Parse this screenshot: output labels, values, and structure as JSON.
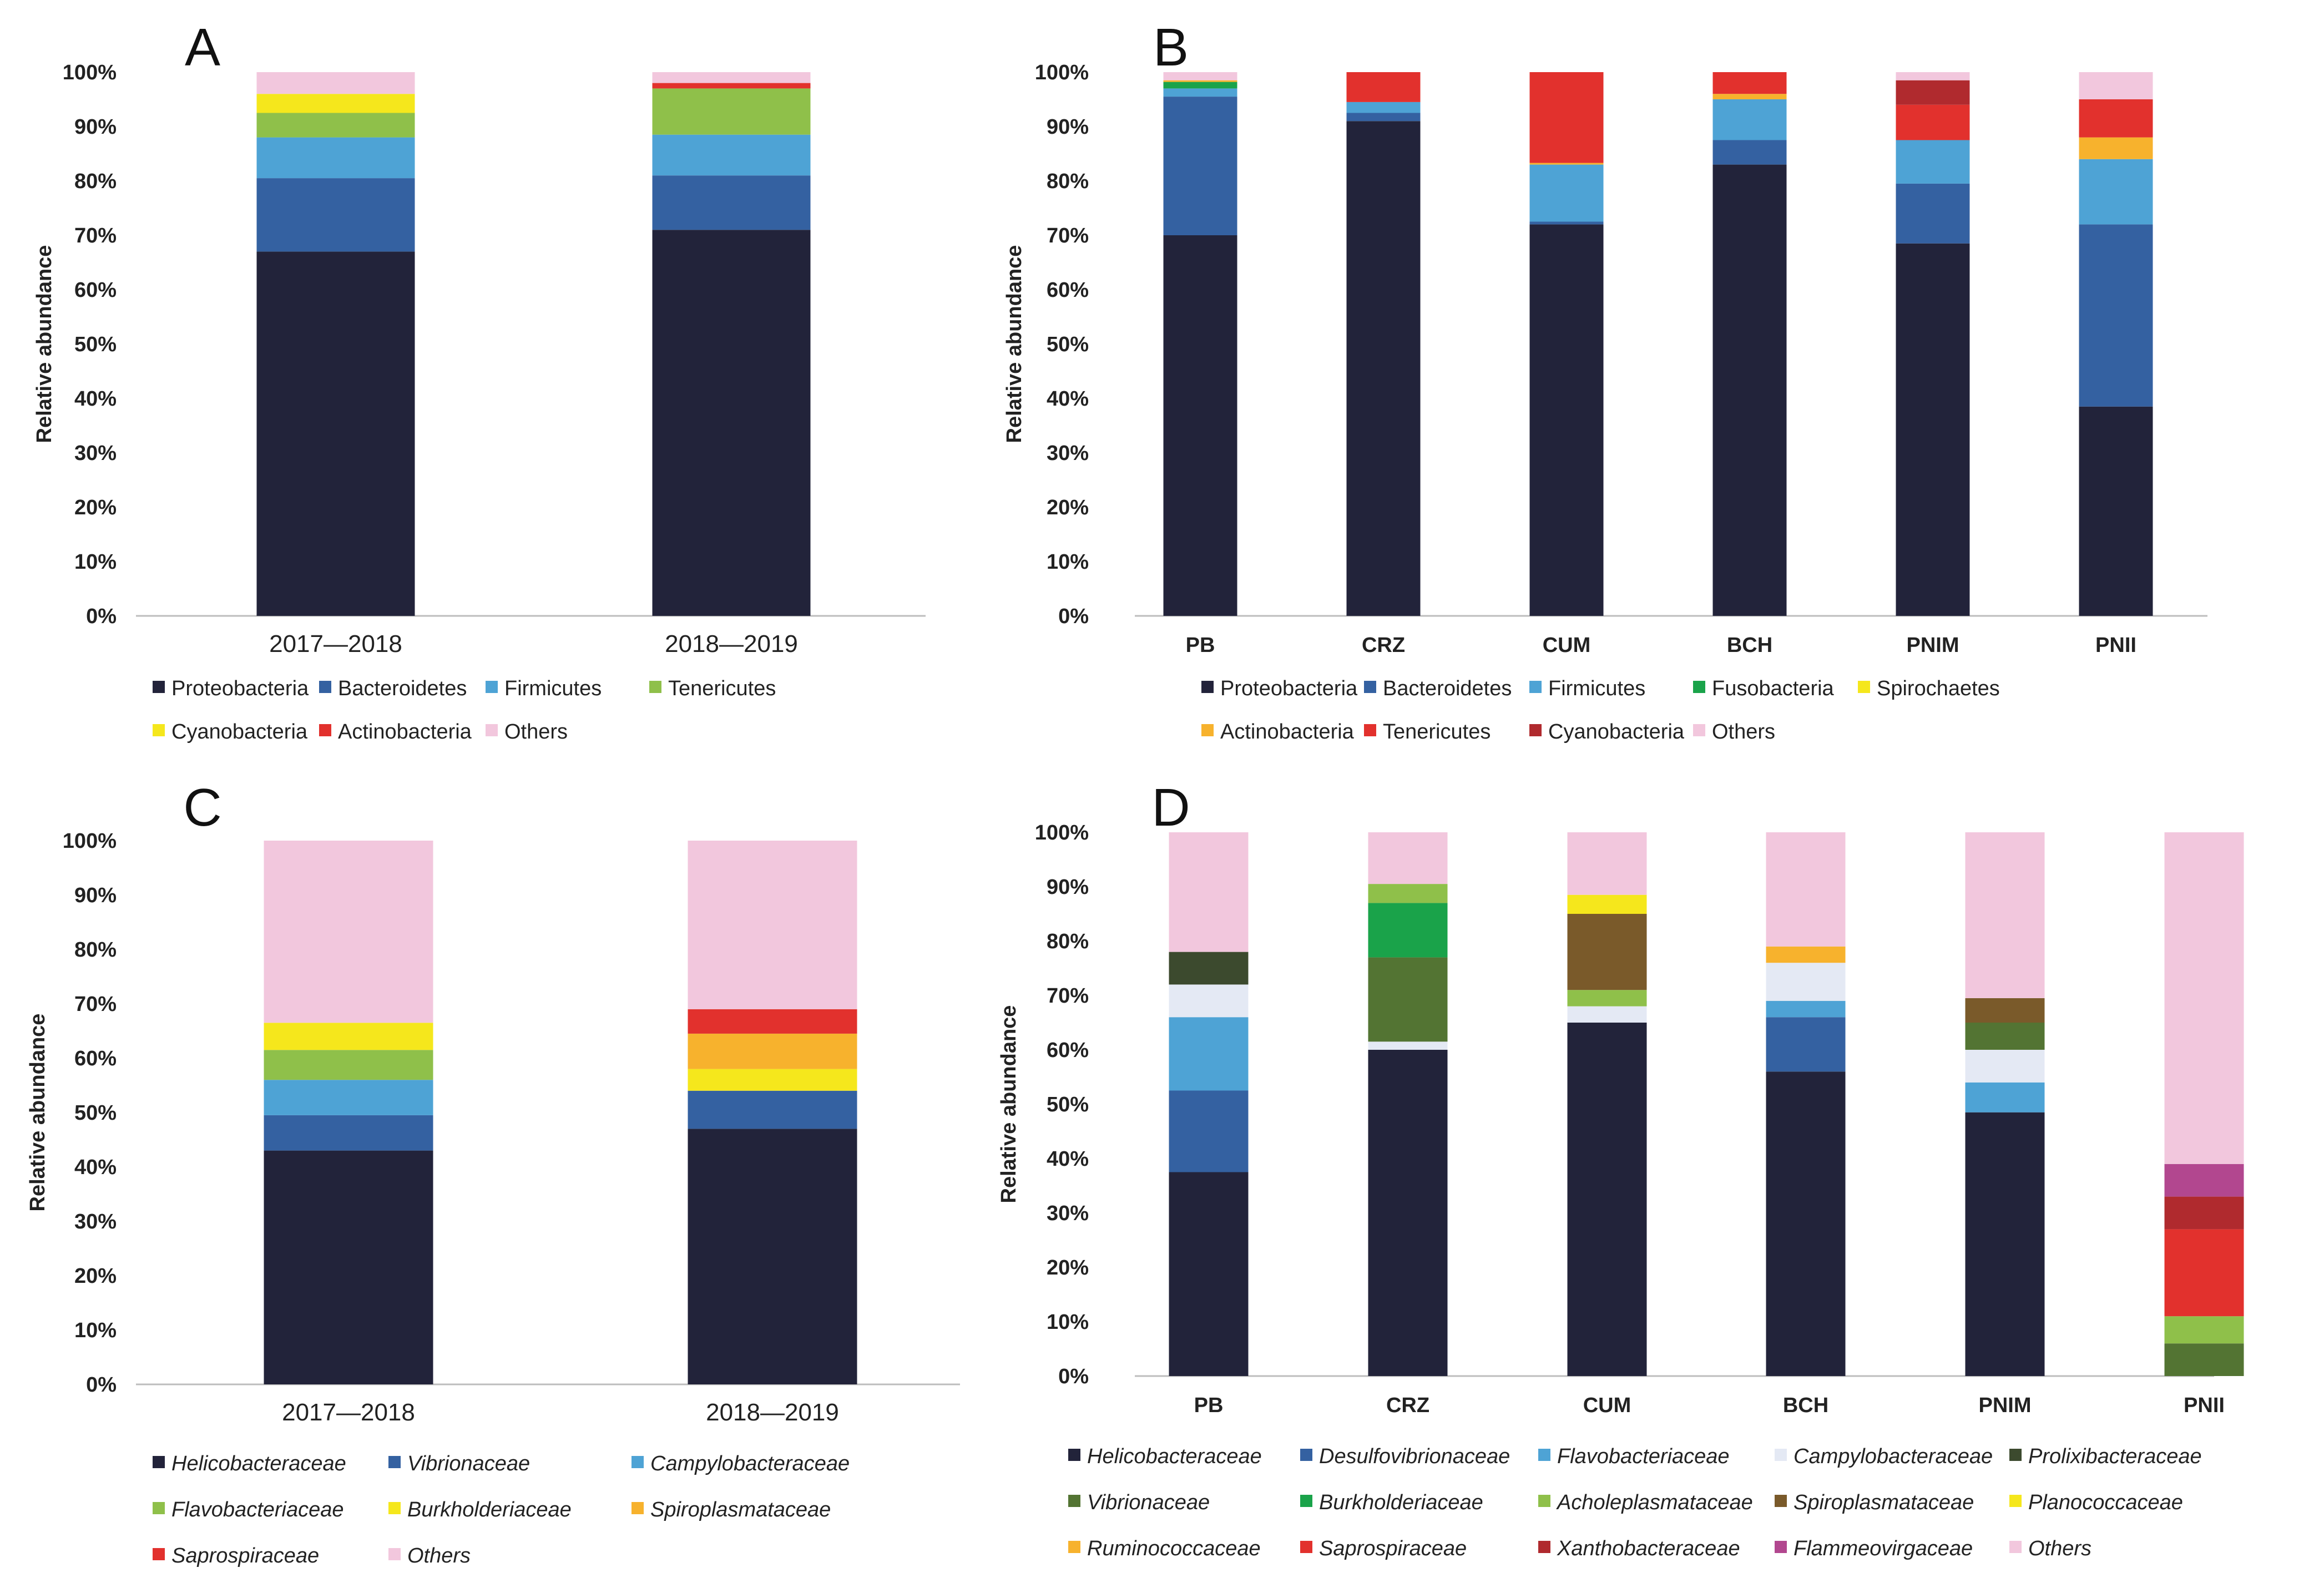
{
  "colors": {
    "dark_navy": "#22233a",
    "blue": "#3461a1",
    "light_blue": "#4ea3d5",
    "green_light": "#8fc04a",
    "yellow": "#f5e71c",
    "red": "#e2312d",
    "pink": "#f2c7dd",
    "green": "#1aa34a",
    "orange": "#f7b22d",
    "dark_red": "#b02a2e",
    "pale_blue": "#e4e9f4",
    "dark_olive": "#3c4a2e",
    "olive_green": "#537433",
    "brown": "#7a5a2a",
    "magenta": "#b2478f"
  },
  "chart_data": [
    {
      "panel": "A",
      "type": "bar",
      "stacked": true,
      "ylabel": "Relative abundance",
      "ylim": [
        0,
        100
      ],
      "yticks": [
        "0%",
        "10%",
        "20%",
        "30%",
        "40%",
        "50%",
        "60%",
        "70%",
        "80%",
        "90%",
        "100%"
      ],
      "categories": [
        "2017—2018",
        "2018—2019"
      ],
      "series": [
        {
          "name": "Proteobacteria",
          "color": "#22233a",
          "values": [
            67,
            71
          ]
        },
        {
          "name": "Bacteroidetes",
          "color": "#3461a1",
          "values": [
            13.5,
            10
          ]
        },
        {
          "name": "Firmicutes",
          "color": "#4ea3d5",
          "values": [
            7.5,
            7.5
          ]
        },
        {
          "name": "Tenericutes",
          "color": "#8fc04a",
          "values": [
            4.5,
            8.5
          ]
        },
        {
          "name": "Cyanobacteria",
          "color": "#f5e71c",
          "values": [
            3.5,
            0
          ]
        },
        {
          "name": "Actinobacteria",
          "color": "#e2312d",
          "values": [
            0,
            1
          ]
        },
        {
          "name": "Others",
          "color": "#f2c7dd",
          "values": [
            4,
            2
          ]
        }
      ]
    },
    {
      "panel": "B",
      "type": "bar",
      "stacked": true,
      "ylabel": "Relative abundance",
      "ylim": [
        0,
        100
      ],
      "yticks": [
        "0%",
        "10%",
        "20%",
        "30%",
        "40%",
        "50%",
        "60%",
        "70%",
        "80%",
        "90%",
        "100%"
      ],
      "categories": [
        "PB",
        "CRZ",
        "CUM",
        "BCH",
        "PNIM",
        "PNII"
      ],
      "series": [
        {
          "name": "Proteobacteria",
          "color": "#22233a",
          "values": [
            70,
            91,
            72,
            83,
            68.5,
            38.5
          ]
        },
        {
          "name": "Bacteroidetes",
          "color": "#3461a1",
          "values": [
            25.5,
            1.5,
            0.5,
            4.5,
            11,
            33.5
          ]
        },
        {
          "name": "Firmicutes",
          "color": "#4ea3d5",
          "values": [
            1.5,
            2,
            10.5,
            7.5,
            8,
            12
          ]
        },
        {
          "name": "Fusobacteria",
          "color": "#1aa34a",
          "values": [
            1.2,
            0,
            0,
            0,
            0,
            0
          ]
        },
        {
          "name": "Spirochaetes",
          "color": "#f5e71c",
          "values": [
            0,
            0,
            0,
            0,
            0,
            0
          ]
        },
        {
          "name": "Actinobacteria",
          "color": "#f7b22d",
          "values": [
            0.3,
            0,
            0.3,
            1,
            0,
            4
          ]
        },
        {
          "name": "Tenericutes",
          "color": "#e2312d",
          "values": [
            0,
            5.5,
            16.7,
            4,
            6.5,
            7
          ]
        },
        {
          "name": "Cyanobacteria",
          "color": "#b02a2e",
          "values": [
            0,
            0,
            0,
            0,
            4.5,
            0
          ]
        },
        {
          "name": "Others",
          "color": "#f2c7dd",
          "values": [
            1.5,
            0,
            0,
            0,
            1.5,
            5
          ]
        }
      ]
    },
    {
      "panel": "C",
      "type": "bar",
      "stacked": true,
      "ylabel": "Relative abundance",
      "ylim": [
        0,
        100
      ],
      "yticks": [
        "0%",
        "10%",
        "20%",
        "30%",
        "40%",
        "50%",
        "60%",
        "70%",
        "80%",
        "90%",
        "100%"
      ],
      "categories": [
        "2017—2018",
        "2018—2019"
      ],
      "series": [
        {
          "name": "Helicobacteraceae",
          "color": "#22233a",
          "values": [
            43,
            47
          ]
        },
        {
          "name": "Vibrionaceae",
          "color": "#3461a1",
          "values": [
            6.5,
            7
          ]
        },
        {
          "name": "Campylobacteraceae",
          "color": "#4ea3d5",
          "values": [
            6.5,
            0
          ]
        },
        {
          "name": "Flavobacteriaceae",
          "color": "#8fc04a",
          "values": [
            5.5,
            0
          ]
        },
        {
          "name": "Burkholderiaceae",
          "color": "#f5e71c",
          "values": [
            5,
            4
          ]
        },
        {
          "name": "Spiroplasmataceae",
          "color": "#f7b22d",
          "values": [
            0,
            6.5
          ]
        },
        {
          "name": "Saprospiraceae",
          "color": "#e2312d",
          "values": [
            0,
            4.5
          ]
        },
        {
          "name": "Others",
          "color": "#f2c7dd",
          "values": [
            33.5,
            31
          ]
        }
      ]
    },
    {
      "panel": "D",
      "type": "bar",
      "stacked": true,
      "ylabel": "Relative abundance",
      "ylim": [
        0,
        100
      ],
      "yticks": [
        "0%",
        "10%",
        "20%",
        "30%",
        "40%",
        "50%",
        "60%",
        "70%",
        "80%",
        "90%",
        "100%"
      ],
      "categories": [
        "PB",
        "CRZ",
        "CUM",
        "BCH",
        "PNIM",
        "PNII"
      ],
      "series": [
        {
          "name": "Helicobacteraceae",
          "color": "#22233a",
          "values": [
            37.5,
            60,
            65,
            56,
            48.5,
            0
          ]
        },
        {
          "name": "Desulfovibrionaceae",
          "color": "#3461a1",
          "values": [
            15,
            0,
            0,
            10,
            0,
            0
          ]
        },
        {
          "name": "Flavobacteriaceae",
          "color": "#4ea3d5",
          "values": [
            13.5,
            0,
            0,
            3,
            5.5,
            0
          ]
        },
        {
          "name": "Campylobacteraceae",
          "color": "#e4e9f4",
          "values": [
            6,
            1.5,
            3,
            7,
            6,
            0
          ]
        },
        {
          "name": "Prolixibacteraceae",
          "color": "#3c4a2e",
          "values": [
            6,
            0,
            0,
            0,
            0,
            0
          ]
        },
        {
          "name": "Vibrionaceae",
          "color": "#537433",
          "values": [
            0,
            15.5,
            0,
            0,
            5,
            6
          ]
        },
        {
          "name": "Burkholderiaceae",
          "color": "#1aa34a",
          "values": [
            0,
            10,
            0,
            0,
            0,
            0
          ]
        },
        {
          "name": "Acholeplasmataceae",
          "color": "#8fc04a",
          "values": [
            0,
            3.5,
            3,
            0,
            0,
            5
          ]
        },
        {
          "name": "Spiroplasmataceae",
          "color": "#7a5a2a",
          "values": [
            0,
            0,
            14,
            0,
            4.5,
            0
          ]
        },
        {
          "name": "Planococcaceae",
          "color": "#f5e71c",
          "values": [
            0,
            0,
            3.5,
            0,
            0,
            0
          ]
        },
        {
          "name": "Ruminococcaceae",
          "color": "#f7b22d",
          "values": [
            0,
            0,
            0,
            3,
            0,
            0
          ]
        },
        {
          "name": "Saprospiraceae",
          "color": "#e2312d",
          "values": [
            0,
            0,
            0,
            0,
            0,
            16
          ]
        },
        {
          "name": "Xanthobacteraceae",
          "color": "#b02a2e",
          "values": [
            0,
            0,
            0,
            0,
            0,
            6
          ]
        },
        {
          "name": "Flammeovirgaceae",
          "color": "#b2478f",
          "values": [
            0,
            0,
            0,
            0,
            0,
            6
          ]
        },
        {
          "name": "Others",
          "color": "#f2c7dd",
          "values": [
            22,
            9.5,
            11.5,
            21,
            30.5,
            61
          ]
        }
      ]
    }
  ]
}
